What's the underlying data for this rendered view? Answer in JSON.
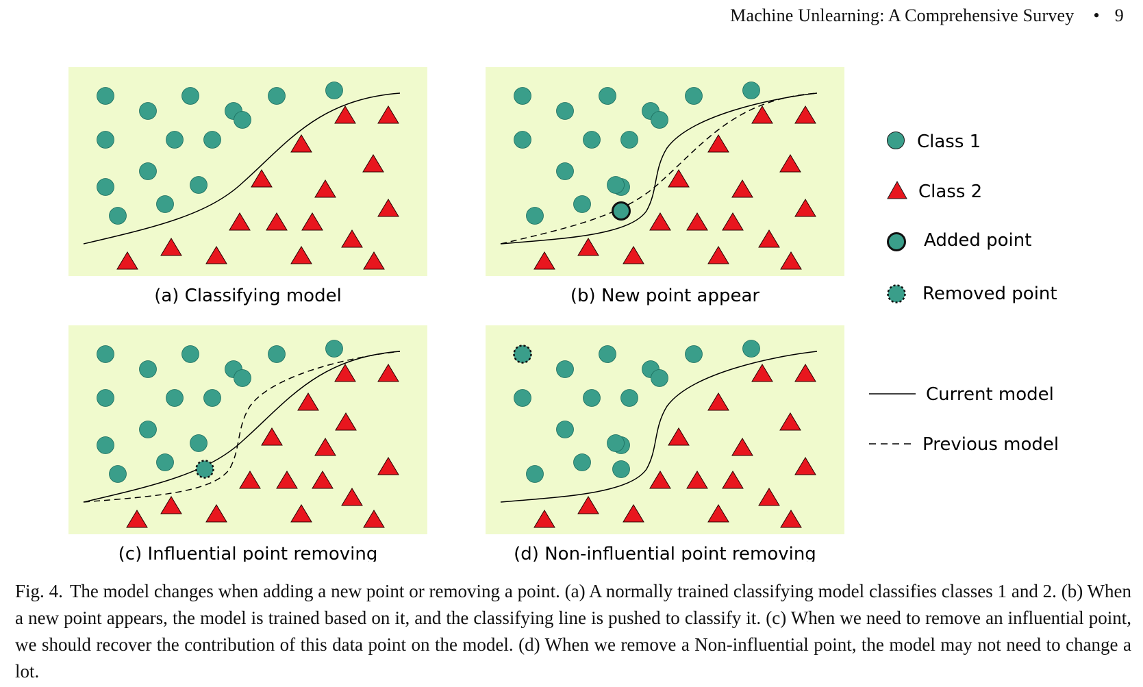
{
  "header": {
    "running_title": "Machine Unlearning: A Comprehensive Survey",
    "bullet": "•",
    "page_number": "9"
  },
  "figure": {
    "panels": [
      {
        "id": "a",
        "caption": "(a) Classifying model",
        "current_curve": "base",
        "previous_curve": null,
        "special": null
      },
      {
        "id": "b",
        "caption": "(b) New point appear",
        "current_curve": "steep",
        "previous_curve": "base",
        "special": "added"
      },
      {
        "id": "c",
        "caption": "(c) Influential point removing",
        "current_curve": "base",
        "previous_curve": "steep",
        "special": "removed-influential"
      },
      {
        "id": "d",
        "caption": "(d) Non-influential point removing",
        "current_curve": "steep",
        "previous_curve": null,
        "special": "removed-noninfluential"
      }
    ],
    "colors": {
      "panel_bg": "#f0facd",
      "class1": "#3a9e8a",
      "class2": "#e8161e",
      "line": "#000000"
    },
    "legend": {
      "class1": "Class 1",
      "class2": "Class 2",
      "added": "Added point",
      "removed": "Removed point",
      "current": "Current model",
      "previous": "Previous model"
    }
  },
  "caption": {
    "label": "Fig. 4.",
    "text": "The model changes when adding a new point or removing a point. (a) A normally trained classifying model classifies classes 1 and 2. (b) When a new point appears, the model is trained based on it, and the classifying line is pushed to classify it. (c) When we need to remove an influential point, we should recover the contribution of this data point on the model. (d) When we remove a Non-influential point, the model may not need to change a lot."
  }
}
